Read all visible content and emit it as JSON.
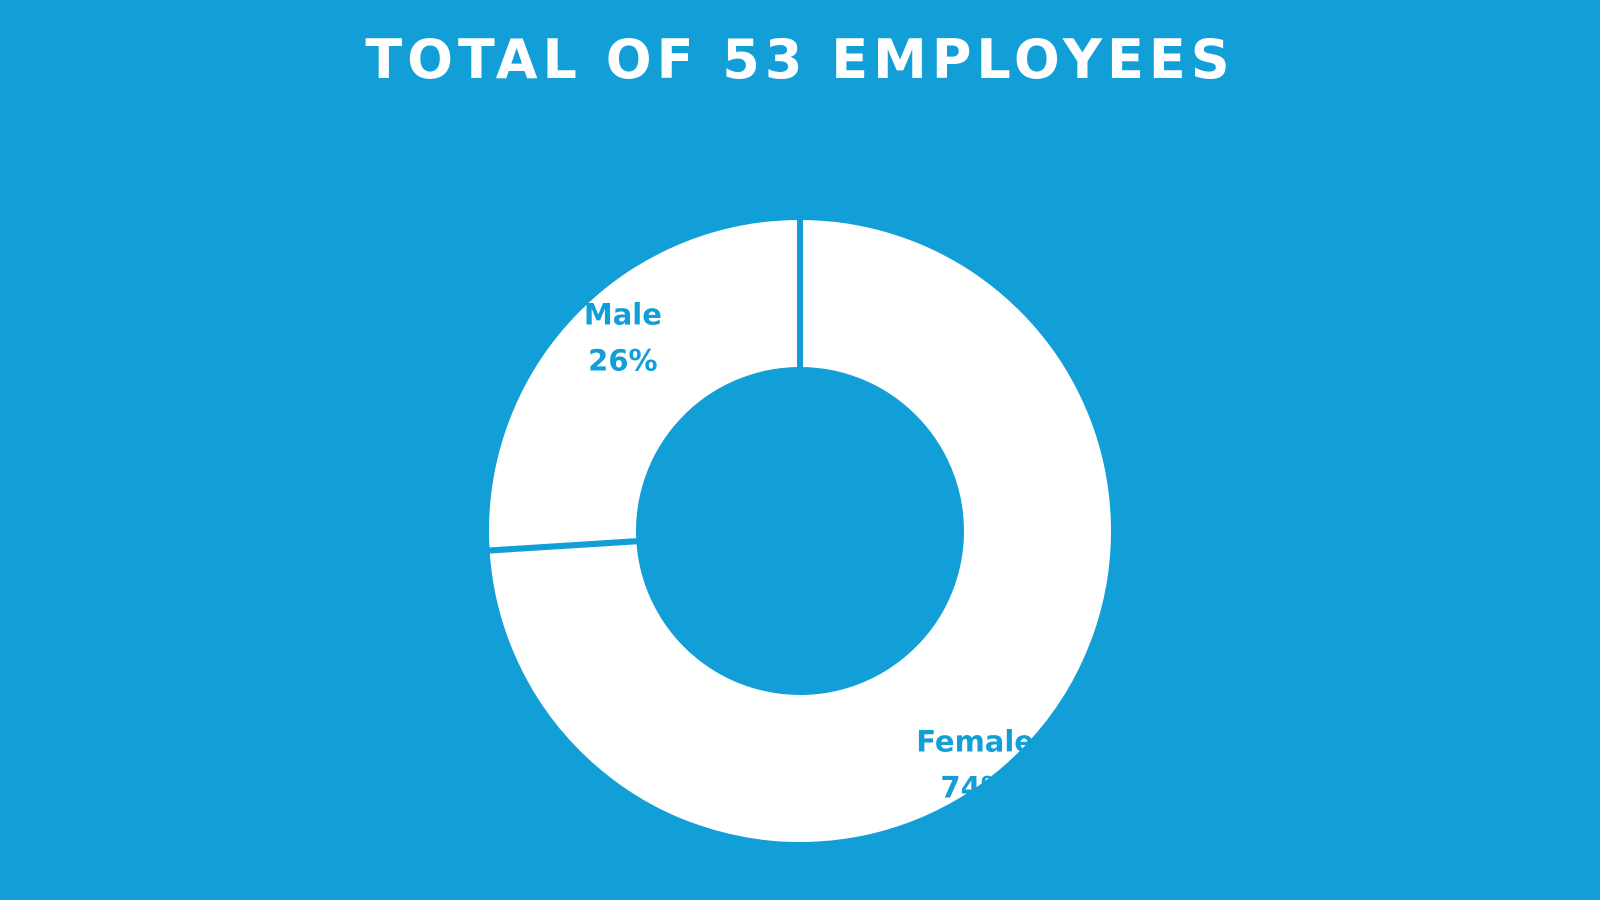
{
  "title": "TOTAL OF 53 EMPLOYEES",
  "colors": {
    "background": "#129fd8",
    "slice": "#ffffff",
    "label": "#129fd8"
  },
  "chart_data": {
    "type": "pie",
    "title": "TOTAL OF 53 EMPLOYEES",
    "donut": true,
    "slices": [
      {
        "label": "Male",
        "value": 26,
        "value_label": "26%"
      },
      {
        "label": "Female",
        "value": 74,
        "value_label": "74%"
      }
    ],
    "start_at": "top",
    "direction": "counterclockwise-from-top for first slice"
  }
}
